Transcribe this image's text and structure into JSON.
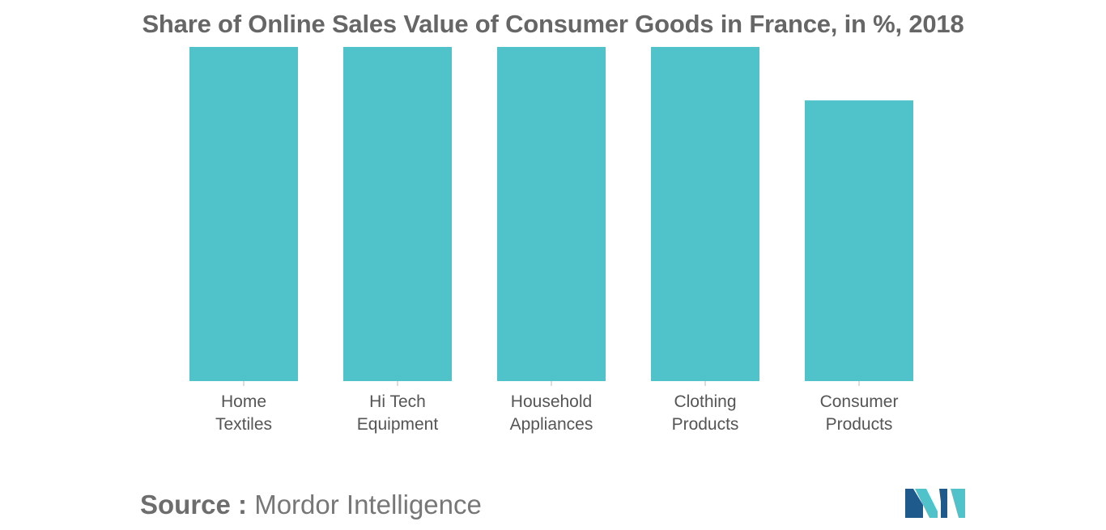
{
  "chart_data": {
    "type": "bar",
    "title": "Share of Online Sales Value of Consumer Goods in France, in %, 2018",
    "categories": [
      [
        "Home",
        "Textiles"
      ],
      [
        "Hi Tech",
        "Equipment"
      ],
      [
        "Household",
        "Appliances"
      ],
      [
        "Clothing",
        "Products"
      ],
      [
        "Consumer",
        "Products"
      ]
    ],
    "values": [
      100,
      100,
      100,
      100,
      84
    ],
    "ylim": [
      0,
      100
    ],
    "xlabel": "",
    "ylabel": "",
    "grid": false,
    "bar_color": "#4fc3c9"
  },
  "source": {
    "label": "Source :",
    "text": "Mordor Intelligence"
  },
  "logo": {
    "icon": "mordor-intelligence-logo-icon",
    "colors": [
      "#1e5a8c",
      "#4fc3c9"
    ]
  }
}
